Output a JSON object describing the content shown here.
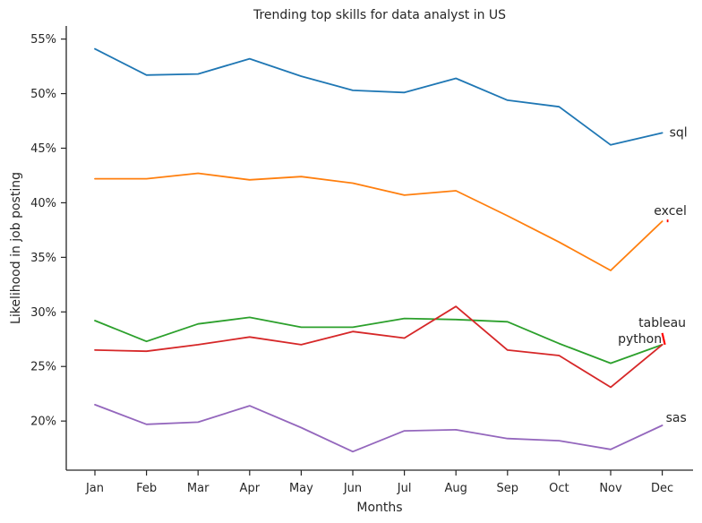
{
  "chart_data": {
    "type": "line",
    "title": "Trending top skills for data analyst in US",
    "xlabel": "Months",
    "ylabel": "Likelihood in job posting",
    "categories": [
      "Jan",
      "Feb",
      "Mar",
      "Apr",
      "May",
      "Jun",
      "Jul",
      "Aug",
      "Sep",
      "Oct",
      "Nov",
      "Dec"
    ],
    "yticks": [
      "20%",
      "25%",
      "30%",
      "35%",
      "40%",
      "45%",
      "50%",
      "55%"
    ],
    "ylim": [
      15.5,
      56.2
    ],
    "grid": false,
    "series": [
      {
        "name": "sql",
        "color": "#1f77b4",
        "values": [
          54.1,
          51.7,
          51.8,
          53.2,
          51.6,
          50.3,
          50.1,
          51.4,
          49.4,
          48.8,
          45.3,
          46.4
        ]
      },
      {
        "name": "excel",
        "color": "#ff7f0e",
        "values": [
          42.2,
          42.2,
          42.7,
          42.1,
          42.4,
          41.8,
          40.7,
          41.1,
          38.8,
          36.4,
          33.8,
          38.3
        ]
      },
      {
        "name": "tableau",
        "color": "#2ca02c",
        "values": [
          29.2,
          27.3,
          28.9,
          29.5,
          28.6,
          28.6,
          29.4,
          29.3,
          29.1,
          27.1,
          25.3,
          27.0
        ]
      },
      {
        "name": "python",
        "color": "#d62728",
        "values": [
          26.5,
          26.4,
          27.0,
          27.7,
          27.0,
          28.2,
          27.6,
          30.5,
          26.5,
          26.0,
          23.1,
          27.0
        ]
      },
      {
        "name": "sas",
        "color": "#9467bd",
        "values": [
          21.5,
          19.7,
          19.9,
          21.4,
          19.4,
          17.2,
          19.1,
          19.2,
          18.4,
          18.2,
          17.4,
          19.6
        ]
      }
    ],
    "annotation_arrow_color": "#ff0000"
  }
}
